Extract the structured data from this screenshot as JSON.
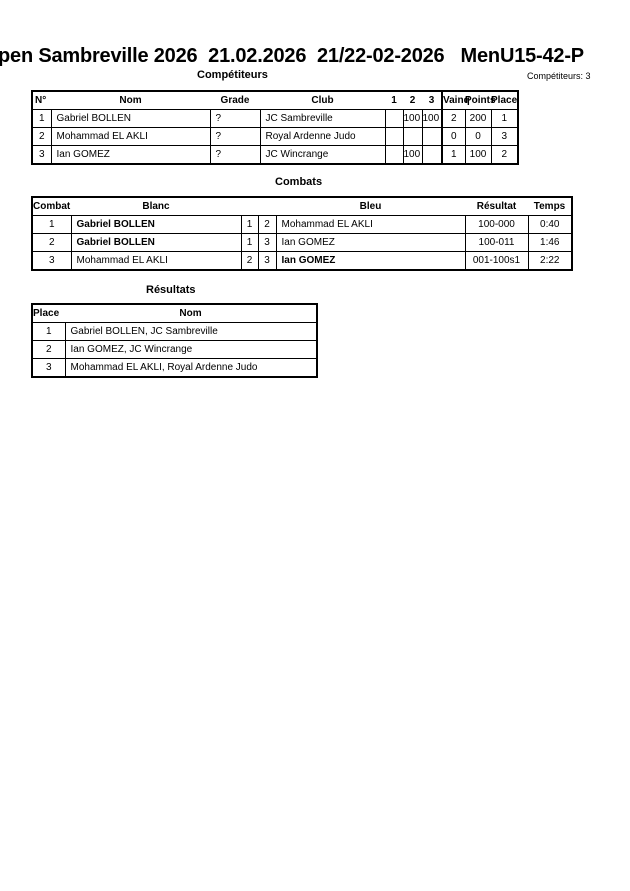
{
  "title": "pen Sambreville 2026  21.02.2026  21/22-02-2026   MenU15-42-P",
  "competitors": {
    "heading": "Compétiteurs",
    "count": "Compétiteurs: 3",
    "headers": [
      "N°",
      "Nom",
      "Grade",
      "Club",
      "1",
      "2",
      "3",
      "Vainq",
      "Points",
      "Place"
    ],
    "rows": [
      [
        "1",
        "Gabriel BOLLEN",
        "?",
        "JC Sambreville",
        "",
        "100",
        "100",
        "2",
        "200",
        "1"
      ],
      [
        "2",
        "Mohammad EL AKLI",
        "?",
        "Royal Ardenne Judo",
        "",
        "",
        "",
        "0",
        "0",
        "3"
      ],
      [
        "3",
        "Ian GOMEZ",
        "?",
        "JC Wincrange",
        "",
        "100",
        "",
        "1",
        "100",
        "2"
      ]
    ]
  },
  "combats": {
    "heading": "Combats",
    "headers": [
      "Combat",
      "Blanc",
      "Bleu",
      "Résultat",
      "Temps"
    ],
    "rows": [
      {
        "n": "1",
        "blanc": "Gabriel BOLLEN",
        "bn": "1",
        "rn": "2",
        "bleu": "Mohammad EL AKLI",
        "res": "100-000",
        "time": "0:40",
        "winner": "blanc"
      },
      {
        "n": "2",
        "blanc": "Gabriel BOLLEN",
        "bn": "1",
        "rn": "3",
        "bleu": "Ian GOMEZ",
        "res": "100-011",
        "time": "1:46",
        "winner": "blanc"
      },
      {
        "n": "3",
        "blanc": "Mohammad EL AKLI",
        "bn": "2",
        "rn": "3",
        "bleu": "Ian GOMEZ",
        "res": "001-100s1",
        "time": "2:22",
        "winner": "bleu"
      }
    ]
  },
  "results": {
    "heading": "Résultats",
    "headers": [
      "Place",
      "Nom"
    ],
    "rows": [
      [
        "1",
        "Gabriel BOLLEN, JC Sambreville"
      ],
      [
        "2",
        "Ian GOMEZ, JC Wincrange"
      ],
      [
        "3",
        "Mohammad EL AKLI, Royal Ardenne Judo"
      ]
    ]
  }
}
